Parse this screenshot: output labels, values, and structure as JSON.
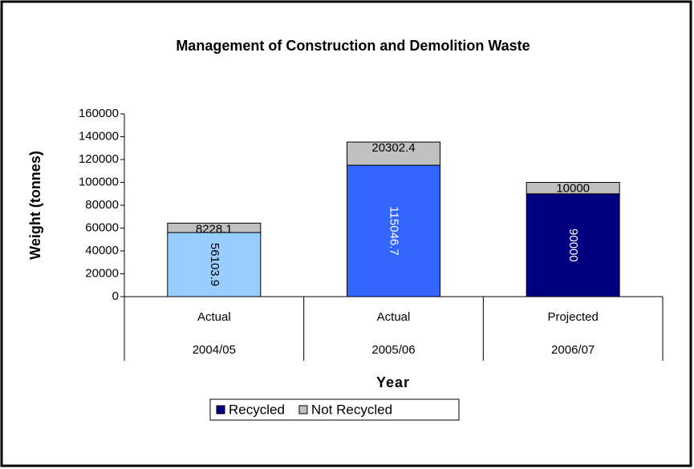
{
  "chart_data": {
    "type": "stacked_bar",
    "title": "Management of Construction and Demolition Waste",
    "y_label": "Weight (tonnes)",
    "x_label": "Year",
    "category_groups": [
      "Actual",
      "Actual",
      "Projected"
    ],
    "categories": [
      "2004/05",
      "2005/06",
      "2006/07"
    ],
    "series": [
      {
        "name": "Recycled",
        "color": "#000080",
        "colors": [
          "#99ccff",
          "#3366ff",
          "#000080"
        ],
        "values": [
          56103.9,
          115046.7,
          90000
        ]
      },
      {
        "name": "Not Recycled",
        "color": "#c0c0c0",
        "values": [
          8228.1,
          20302.4,
          10000
        ]
      }
    ],
    "ylim": [
      0,
      160000
    ],
    "yticks": [
      0,
      20000,
      40000,
      60000,
      80000,
      100000,
      120000,
      140000,
      160000
    ],
    "legend": "bottom"
  }
}
